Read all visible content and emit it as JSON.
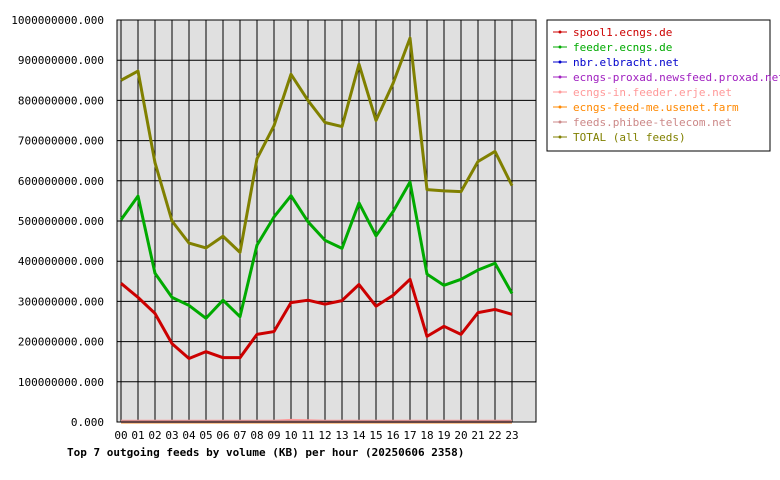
{
  "chart_data": {
    "type": "line",
    "title": "Top 7 outgoing feeds by volume (KB) per hour (20250606 2358)",
    "xlabel": "",
    "ylabel": "",
    "ylim": [
      0,
      1000000000
    ],
    "y_ticks": [
      0,
      100000000,
      200000000,
      300000000,
      400000000,
      500000000,
      600000000,
      700000000,
      800000000,
      900000000,
      1000000000
    ],
    "y_tick_labels": [
      "0.000",
      "100000000.000",
      "200000000.000",
      "300000000.000",
      "400000000.000",
      "500000000.000",
      "600000000.000",
      "700000000.000",
      "800000000.000",
      "900000000.000",
      "1000000000.000"
    ],
    "categories": [
      "00",
      "01",
      "02",
      "03",
      "04",
      "05",
      "06",
      "07",
      "08",
      "09",
      "10",
      "11",
      "12",
      "13",
      "14",
      "15",
      "16",
      "17",
      "18",
      "19",
      "20",
      "21",
      "22",
      "23"
    ],
    "grid": true,
    "legend_position": "right",
    "series": [
      {
        "name": "spool1.ecngs.de",
        "color": "#cc0000",
        "values": [
          345000000,
          310000000,
          270000000,
          195000000,
          158000000,
          175000000,
          160000000,
          160000000,
          218000000,
          225000000,
          297000000,
          303000000,
          293000000,
          302000000,
          342000000,
          288000000,
          315000000,
          355000000,
          213000000,
          238000000,
          218000000,
          272000000,
          280000000,
          268000000
        ]
      },
      {
        "name": "feeder.ecngs.de",
        "color": "#00aa00",
        "values": [
          503000000,
          562000000,
          370000000,
          310000000,
          290000000,
          258000000,
          303000000,
          262000000,
          440000000,
          510000000,
          563000000,
          498000000,
          452000000,
          432000000,
          545000000,
          463000000,
          523000000,
          597000000,
          368000000,
          340000000,
          355000000,
          378000000,
          395000000,
          320000000
        ]
      },
      {
        "name": "nbr.elbracht.net",
        "color": "#0000cc",
        "values": [
          0,
          0,
          0,
          0,
          0,
          0,
          0,
          0,
          0,
          0,
          0,
          0,
          0,
          0,
          0,
          0,
          0,
          0,
          0,
          0,
          0,
          0,
          0,
          0
        ]
      },
      {
        "name": "ecngs-proxad.newsfeed.proxad.net",
        "color": "#a020c0",
        "values": [
          0,
          0,
          0,
          0,
          0,
          0,
          0,
          0,
          0,
          0,
          0,
          0,
          0,
          0,
          0,
          0,
          0,
          0,
          0,
          0,
          0,
          0,
          0,
          0
        ]
      },
      {
        "name": "ecngs-in.feeder.erje.net",
        "color": "#ff9999",
        "values": [
          2000000,
          2000000,
          2000000,
          2000000,
          2000000,
          2000000,
          2000000,
          2000000,
          2000000,
          2000000,
          4000000,
          3000000,
          2000000,
          2000000,
          2000000,
          2000000,
          2000000,
          2000000,
          2000000,
          2000000,
          2000000,
          2000000,
          2000000,
          2000000
        ]
      },
      {
        "name": "ecngs-feed-me.usenet.farm",
        "color": "#ff8800",
        "values": [
          0,
          0,
          0,
          0,
          0,
          0,
          0,
          0,
          0,
          0,
          0,
          0,
          0,
          0,
          0,
          0,
          0,
          0,
          0,
          0,
          0,
          0,
          0,
          0
        ]
      },
      {
        "name": "feeds.phibee-telecom.net",
        "color": "#cc8888",
        "values": [
          1000000,
          1000000,
          1000000,
          1000000,
          1000000,
          1000000,
          1000000,
          1000000,
          1000000,
          1000000,
          1000000,
          1000000,
          1000000,
          1000000,
          1000000,
          1000000,
          1000000,
          1000000,
          1000000,
          1000000,
          1000000,
          1000000,
          1000000,
          1000000
        ]
      },
      {
        "name": "TOTAL (all feeds)",
        "color": "#808000",
        "values": [
          850000000,
          873000000,
          645000000,
          500000000,
          445000000,
          433000000,
          462000000,
          422000000,
          655000000,
          737000000,
          865000000,
          800000000,
          745000000,
          735000000,
          890000000,
          750000000,
          842000000,
          955000000,
          578000000,
          575000000,
          573000000,
          648000000,
          673000000,
          588000000
        ]
      }
    ]
  }
}
